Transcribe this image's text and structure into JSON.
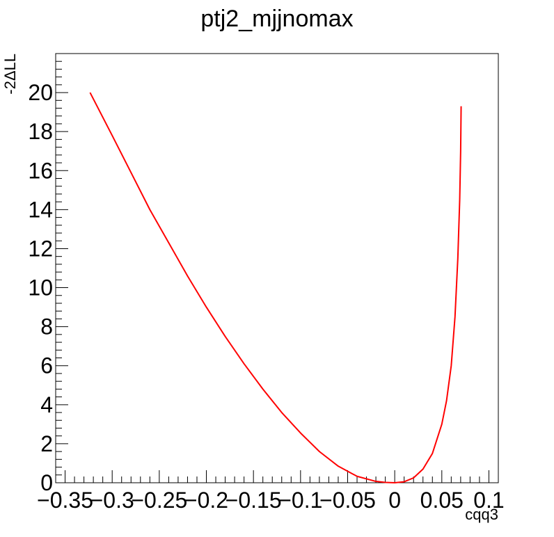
{
  "chart_data": {
    "type": "line",
    "title": "ptj2_mjjnomax",
    "xlabel": "cqq3",
    "ylabel": "-2ΔLL",
    "xlim": [
      -0.36,
      0.11
    ],
    "ylim": [
      0,
      22
    ],
    "x_ticks": [
      -0.35,
      -0.3,
      -0.25,
      -0.2,
      -0.15,
      -0.1,
      -0.05,
      0,
      0.05,
      0.1
    ],
    "x_tick_labels": [
      "−0.35",
      "−0.3",
      "−0.25",
      "−0.2",
      "−0.15",
      "−0.1",
      "−0.05",
      "0",
      "0.05",
      "0.1"
    ],
    "y_ticks": [
      0,
      2,
      4,
      6,
      8,
      10,
      12,
      14,
      16,
      18,
      20
    ],
    "y_tick_labels": [
      "0",
      "2",
      "4",
      "6",
      "8",
      "10",
      "12",
      "14",
      "16",
      "18",
      "20"
    ],
    "grid": false,
    "legend": "none",
    "series": [
      {
        "color": "#ff0000",
        "x": [
          -0.3235,
          -0.3,
          -0.28,
          -0.26,
          -0.24,
          -0.22,
          -0.2,
          -0.18,
          -0.16,
          -0.14,
          -0.12,
          -0.1,
          -0.08,
          -0.06,
          -0.04,
          -0.02,
          -0.01,
          0.0,
          0.01,
          0.02,
          0.03,
          0.04,
          0.05,
          0.055,
          0.06,
          0.064,
          0.067,
          0.069,
          0.07,
          0.0705
        ],
        "y": [
          20.0,
          17.8,
          15.9,
          14.0,
          12.3,
          10.6,
          9.0,
          7.5,
          6.1,
          4.8,
          3.6,
          2.55,
          1.6,
          0.85,
          0.33,
          0.07,
          0.02,
          0.0,
          0.05,
          0.25,
          0.7,
          1.5,
          3.0,
          4.2,
          6.0,
          8.5,
          11.5,
          14.5,
          17.0,
          19.3
        ]
      }
    ]
  }
}
